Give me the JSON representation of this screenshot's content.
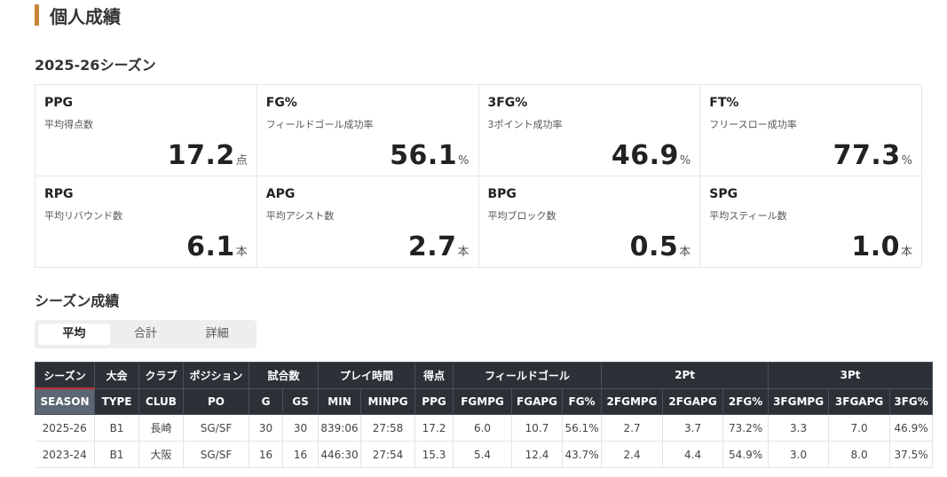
{
  "header": {
    "title": "個人成績"
  },
  "season_title": "2025-26シーズン",
  "stats": [
    {
      "code": "PPG",
      "label": "平均得点数",
      "value": "17.2",
      "unit": "点"
    },
    {
      "code": "FG%",
      "label": "フィールドゴール成功率",
      "value": "56.1",
      "unit": "%"
    },
    {
      "code": "3FG%",
      "label": "3ポイント成功率",
      "value": "46.9",
      "unit": "%"
    },
    {
      "code": "FT%",
      "label": "フリースロー成功率",
      "value": "77.3",
      "unit": "%"
    },
    {
      "code": "RPG",
      "label": "平均リバウンド数",
      "value": "6.1",
      "unit": "本"
    },
    {
      "code": "APG",
      "label": "平均アシスト数",
      "value": "2.7",
      "unit": "本"
    },
    {
      "code": "BPG",
      "label": "平均ブロック数",
      "value": "0.5",
      "unit": "本"
    },
    {
      "code": "SPG",
      "label": "平均スティール数",
      "value": "1.0",
      "unit": "本"
    }
  ],
  "section_title": "シーズン成績",
  "tabs": [
    "平均",
    "合計",
    "詳細"
  ],
  "table": {
    "groups": [
      {
        "label": "シーズン",
        "span": 1
      },
      {
        "label": "大会",
        "span": 1
      },
      {
        "label": "クラブ",
        "span": 1
      },
      {
        "label": "ポジション",
        "span": 1
      },
      {
        "label": "試合数",
        "span": 2
      },
      {
        "label": "プレイ時間",
        "span": 2
      },
      {
        "label": "得点",
        "span": 1
      },
      {
        "label": "フィールドゴール",
        "span": 3
      },
      {
        "label": "2Pt",
        "span": 3
      },
      {
        "label": "3Pt",
        "span": 3
      }
    ],
    "columns": [
      "SEASON",
      "TYPE",
      "CLUB",
      "PO",
      "G",
      "GS",
      "MIN",
      "MINPG",
      "PPG",
      "FGMPG",
      "FGAPG",
      "FG%",
      "2FGMPG",
      "2FGAPG",
      "2FG%",
      "3FGMPG",
      "3FGAPG",
      "3FG%"
    ],
    "rows": [
      [
        "2025-26",
        "B1",
        "長崎",
        "SG/SF",
        "30",
        "30",
        "839:06",
        "27:58",
        "17.2",
        "6.0",
        "10.7",
        "56.1%",
        "2.7",
        "3.7",
        "73.2%",
        "3.3",
        "7.0",
        "46.9%"
      ],
      [
        "2023-24",
        "B1",
        "大阪",
        "SG/SF",
        "16",
        "16",
        "446:30",
        "27:54",
        "15.3",
        "5.4",
        "12.4",
        "43.7%",
        "2.4",
        "4.4",
        "54.9%",
        "3.0",
        "8.0",
        "37.5%"
      ]
    ]
  }
}
